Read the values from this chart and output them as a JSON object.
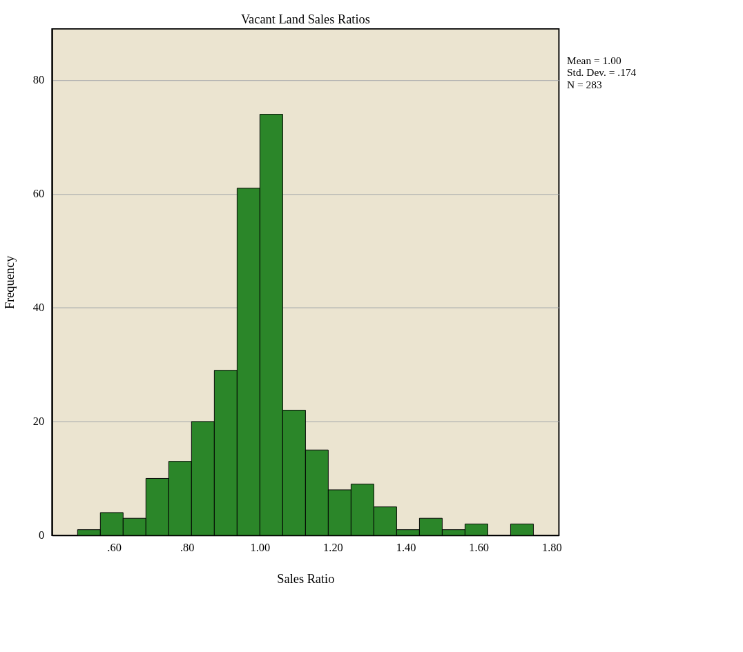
{
  "chart_data": {
    "type": "histogram",
    "title": "Vacant Land Sales Ratios",
    "xlabel": "Sales Ratio",
    "ylabel": "Frequency",
    "bins": [
      0.5,
      0.5625,
      0.625,
      0.6875,
      0.75,
      0.8125,
      0.875,
      0.9375,
      1.0,
      1.0625,
      1.125,
      1.1875,
      1.25,
      1.3125,
      1.375,
      1.4375,
      1.5,
      1.5625,
      1.625,
      1.6875,
      1.75
    ],
    "values": [
      1,
      4,
      3,
      10,
      13,
      20,
      29,
      61,
      74,
      22,
      15,
      8,
      9,
      5,
      1,
      3,
      1,
      2,
      0,
      2
    ],
    "color": "#2b8629",
    "xlim": [
      0.43,
      1.82
    ],
    "xticks": [
      {
        "value": 0.6,
        "label": ".60"
      },
      {
        "value": 0.8,
        "label": ".80"
      },
      {
        "value": 1.0,
        "label": "1.00"
      },
      {
        "value": 1.2,
        "label": "1.20"
      },
      {
        "value": 1.4,
        "label": "1.40"
      },
      {
        "value": 1.6,
        "label": "1.60"
      },
      {
        "value": 1.8,
        "label": "1.80"
      }
    ],
    "ylim": [
      0,
      89
    ],
    "yticks": [
      0,
      20,
      40,
      60,
      80
    ],
    "grid": "y",
    "annotations": [
      "Mean = 1.00",
      "Std. Dev. = .174",
      "N = 283"
    ]
  }
}
